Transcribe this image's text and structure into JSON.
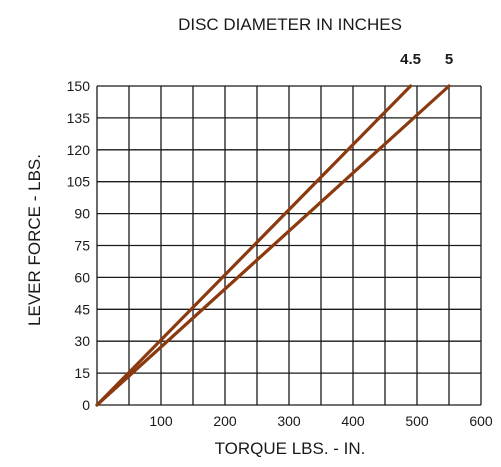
{
  "chart_data": {
    "type": "line",
    "title": "DISC DIAMETER IN INCHES",
    "xlabel": "TORQUE LBS. - IN.",
    "ylabel": "LEVER FORCE - LBS.",
    "xlim": [
      0,
      600
    ],
    "ylim": [
      0,
      150
    ],
    "x_tick_labels": [
      "100",
      "200",
      "300",
      "400",
      "500",
      "600"
    ],
    "y_tick_labels": [
      "0",
      "15",
      "30",
      "45",
      "60",
      "75",
      "90",
      "105",
      "120",
      "135",
      "150"
    ],
    "grid": true,
    "line_color": "#8b3a10",
    "series": [
      {
        "name": "4.5",
        "x": [
          0,
          490
        ],
        "y": [
          0,
          150
        ]
      },
      {
        "name": "5",
        "x": [
          0,
          550
        ],
        "y": [
          0,
          150
        ]
      }
    ]
  }
}
